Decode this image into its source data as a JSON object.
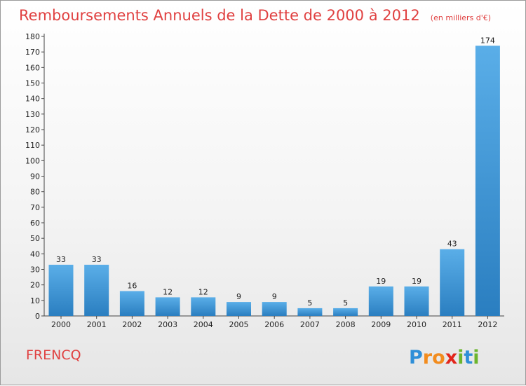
{
  "chart_data": {
    "type": "bar",
    "title": "Remboursements Annuels de la Dette de 2000 à 2012",
    "subtitle": "(en milliers d'€)",
    "categories": [
      "2000",
      "2001",
      "2002",
      "2003",
      "2004",
      "2005",
      "2006",
      "2007",
      "2008",
      "2009",
      "2010",
      "2011",
      "2012"
    ],
    "values": [
      33,
      33,
      16,
      12,
      12,
      9,
      9,
      5,
      5,
      19,
      19,
      43,
      174
    ],
    "ylim": [
      0,
      180
    ],
    "ytick_step": 10,
    "grid": false,
    "colors": {
      "bar_light": "#5aaee8",
      "bar_dark": "#2a7ec0",
      "title": "#e04040"
    }
  },
  "commune": "FRENCQ",
  "logo": {
    "letters": [
      "P",
      "r",
      "o",
      "x",
      "i",
      "t",
      "i"
    ],
    "colors": [
      "#2f8fd8",
      "#f28c1e",
      "#f28c1e",
      "#e2261c",
      "#6cb52d",
      "#2f8fd8",
      "#6cb52d"
    ]
  }
}
